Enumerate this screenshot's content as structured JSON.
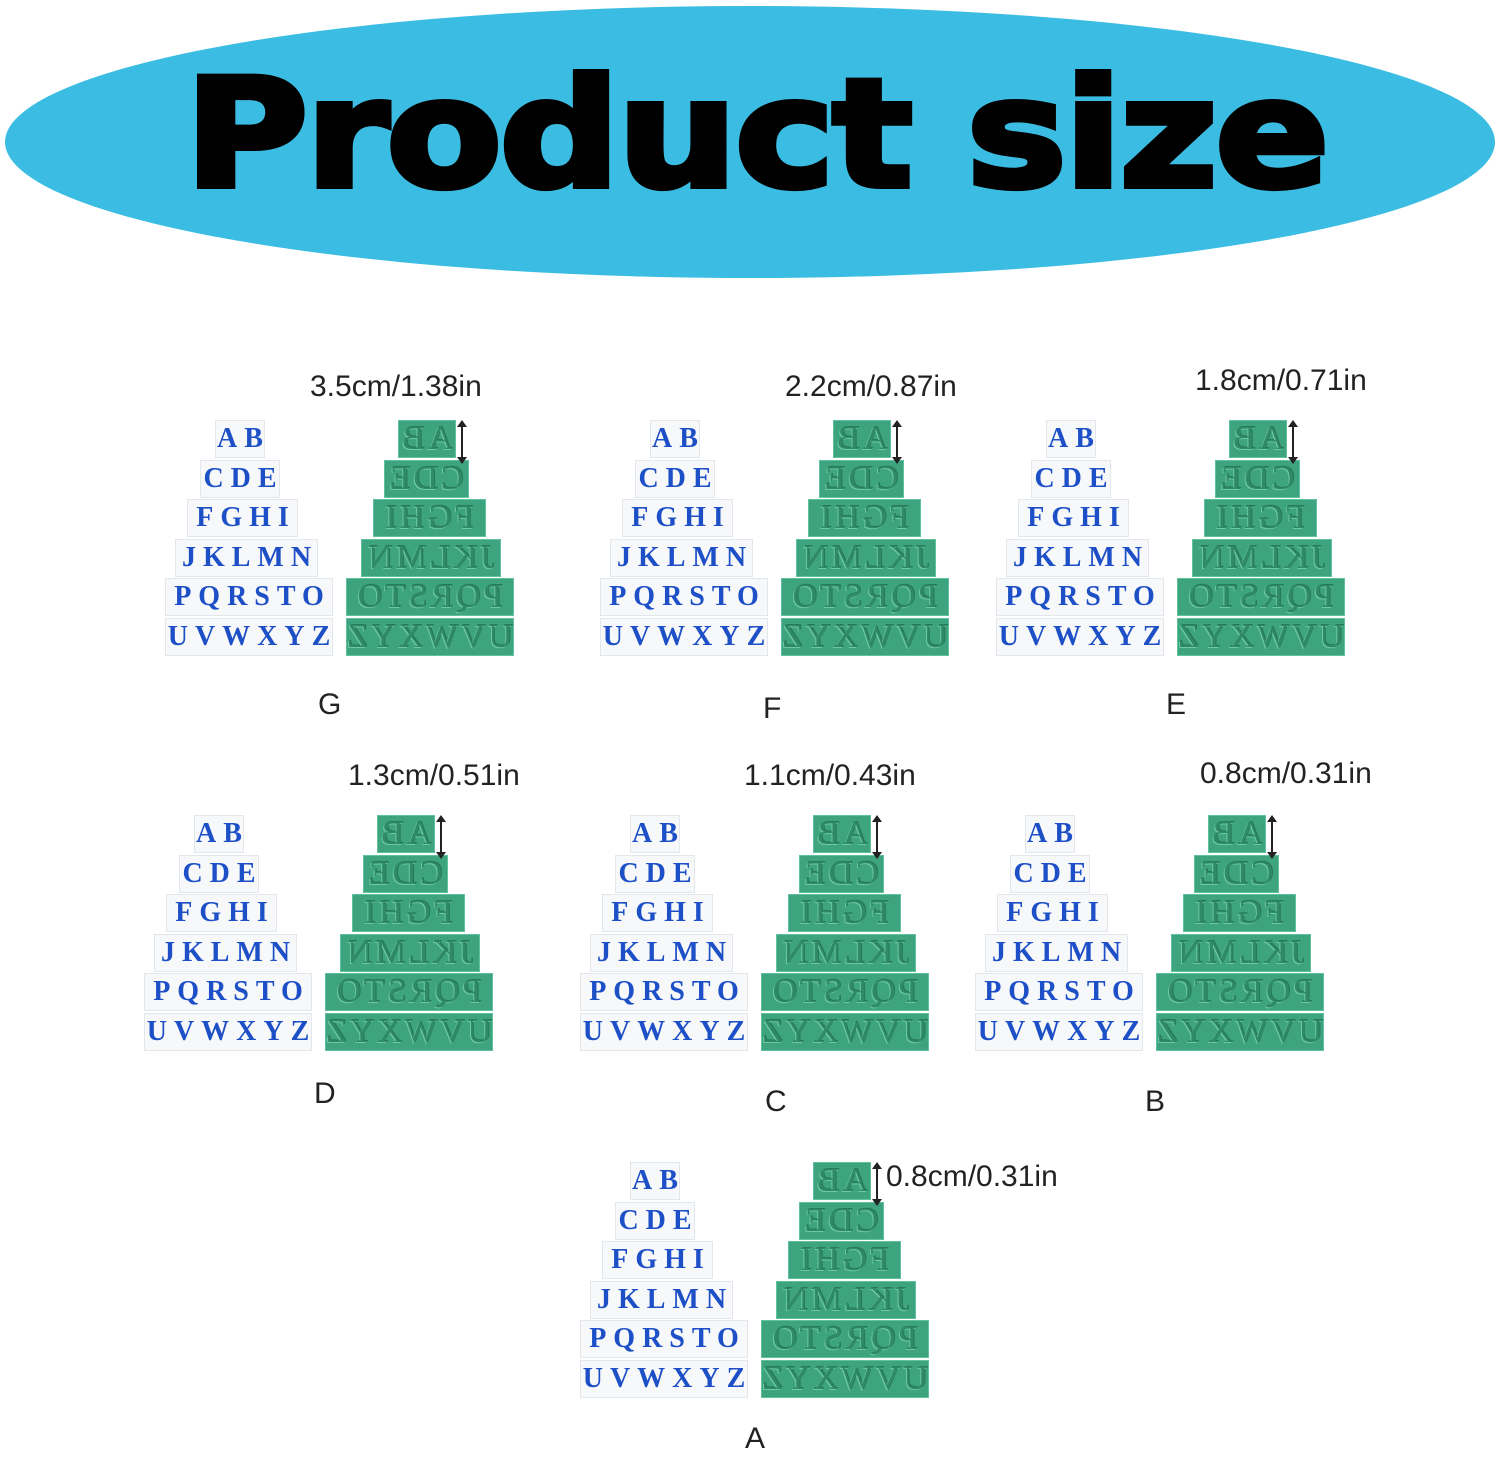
{
  "title": "Product size",
  "colors": {
    "banner": "#3bbde3",
    "tray_letters": "#1d4fc6",
    "stamp": "#3ea37f"
  },
  "letter_rows": [
    "AB",
    "CDE",
    "FGHI",
    "JKLMN",
    "PQRSTO",
    "UVWXYZ"
  ],
  "sets": [
    {
      "label": "G",
      "dimension": "3.5cm/1.38in"
    },
    {
      "label": "F",
      "dimension": "2.2cm/0.87in"
    },
    {
      "label": "E",
      "dimension": "1.8cm/0.71in"
    },
    {
      "label": "D",
      "dimension": "1.3cm/0.51in"
    },
    {
      "label": "C",
      "dimension": "1.1cm/0.43in"
    },
    {
      "label": "B",
      "dimension": "0.8cm/0.31in"
    },
    {
      "label": "A",
      "dimension": "0.8cm/0.31in"
    }
  ]
}
